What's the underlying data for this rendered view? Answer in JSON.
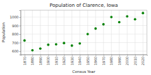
{
  "chart_data": {
    "type": "scatter",
    "title": "Population of Clarence, Iowa",
    "x_label": "Census Year",
    "y_label": "Population",
    "x": [
      1870,
      1880,
      1890,
      1900,
      1910,
      1920,
      1930,
      1940,
      1950,
      1960,
      1970,
      1980,
      1990,
      2000,
      2010,
      2020
    ],
    "values": [
      725,
      610,
      630,
      675,
      680,
      695,
      665,
      690,
      800,
      865,
      915,
      1000,
      940,
      1008,
      974,
      1047
    ],
    "color": "#008000",
    "marker": "circle",
    "xlim": [
      1865,
      2025
    ],
    "xticks": [
      1870,
      1880,
      1890,
      1900,
      1910,
      1920,
      1930,
      1940,
      1950,
      1960,
      1970,
      1980,
      1990,
      2000,
      2010,
      2020
    ],
    "ylim": [
      560,
      1080
    ],
    "yticks": [
      600,
      700,
      800,
      900,
      1000
    ],
    "grid": true
  }
}
